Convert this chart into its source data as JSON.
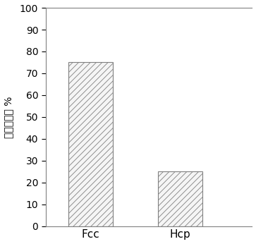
{
  "categories": [
    "Fcc",
    "Hcp"
  ],
  "values": [
    75,
    25
  ],
  "bar_facecolor": "#f5f5f5",
  "bar_edgecolor": "#808080",
  "hatch_pattern": "////",
  "hatch_color": "#aaaaaa",
  "ylabel": "含量百分比 %",
  "ylim": [
    0,
    100
  ],
  "yticks": [
    0,
    10,
    20,
    30,
    40,
    50,
    60,
    70,
    80,
    90,
    100
  ],
  "bar_width": 0.5,
  "figsize": [
    3.63,
    3.46
  ],
  "dpi": 100,
  "ylabel_fontsize": 10,
  "tick_fontsize": 10,
  "xtick_fontsize": 11,
  "spine_color": "#808080",
  "background_color": "#ffffff",
  "bar_positions": [
    1,
    2
  ],
  "xlim": [
    0.5,
    2.8
  ]
}
